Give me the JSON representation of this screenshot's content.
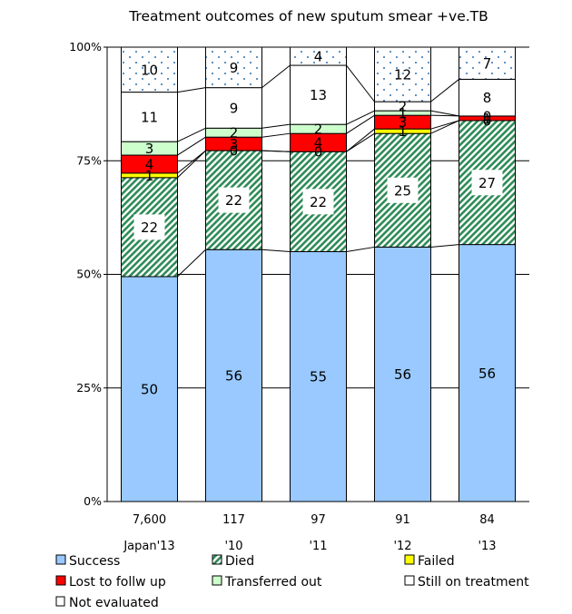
{
  "chart_data": {
    "type": "bar",
    "stacked": true,
    "title": "Treatment outcomes of new sputum smear +ve.TB",
    "categories": [
      "Japan'13",
      "'10",
      "'11",
      "'12",
      "'13"
    ],
    "counts": [
      "7,600",
      "117",
      "97",
      "91",
      "84"
    ],
    "yticks": [
      "0%",
      "25%",
      "50%",
      "75%",
      "100%"
    ],
    "ylim": [
      0,
      100
    ],
    "grid": true,
    "legend_position": "bottom",
    "series": [
      {
        "name": "Success",
        "color": "#99C9FF",
        "pattern": "solid",
        "values": [
          50,
          56,
          55,
          56,
          56
        ]
      },
      {
        "name": "Died",
        "color": "#2E8B57",
        "pattern": "diagonal-hatch",
        "values": [
          22,
          22,
          22,
          25,
          27
        ]
      },
      {
        "name": "Failed",
        "color": "#FFFF00",
        "pattern": "solid",
        "values": [
          1,
          0,
          0,
          1,
          0
        ]
      },
      {
        "name": "Lost to follw up",
        "color": "#FF0000",
        "pattern": "solid",
        "values": [
          4,
          3,
          4,
          3,
          1
        ]
      },
      {
        "name": "Transferred out",
        "color": "#CCFFCC",
        "pattern": "solid",
        "values": [
          3,
          2,
          2,
          1,
          0
        ]
      },
      {
        "name": "Still on treatment",
        "color": "#FFFFFF",
        "pattern": "solid",
        "values": [
          11,
          9,
          13,
          2,
          8
        ]
      },
      {
        "name": "Not evaluated",
        "color": "#FFFFFF",
        "pattern": "dots",
        "values": [
          10,
          9,
          4,
          12,
          7
        ]
      }
    ],
    "segment_labels": [
      [
        "50",
        "22",
        "1",
        "4",
        "3",
        "11",
        "10"
      ],
      [
        "56",
        "22",
        "0",
        "3",
        "2",
        "9",
        "9"
      ],
      [
        "55",
        "22",
        "0",
        "4",
        "2",
        "13",
        "4"
      ],
      [
        "56",
        "25",
        "1",
        "3",
        "1",
        "2",
        "12"
      ],
      [
        "56",
        "27",
        "0",
        "1",
        "0",
        "8",
        "7"
      ]
    ]
  }
}
